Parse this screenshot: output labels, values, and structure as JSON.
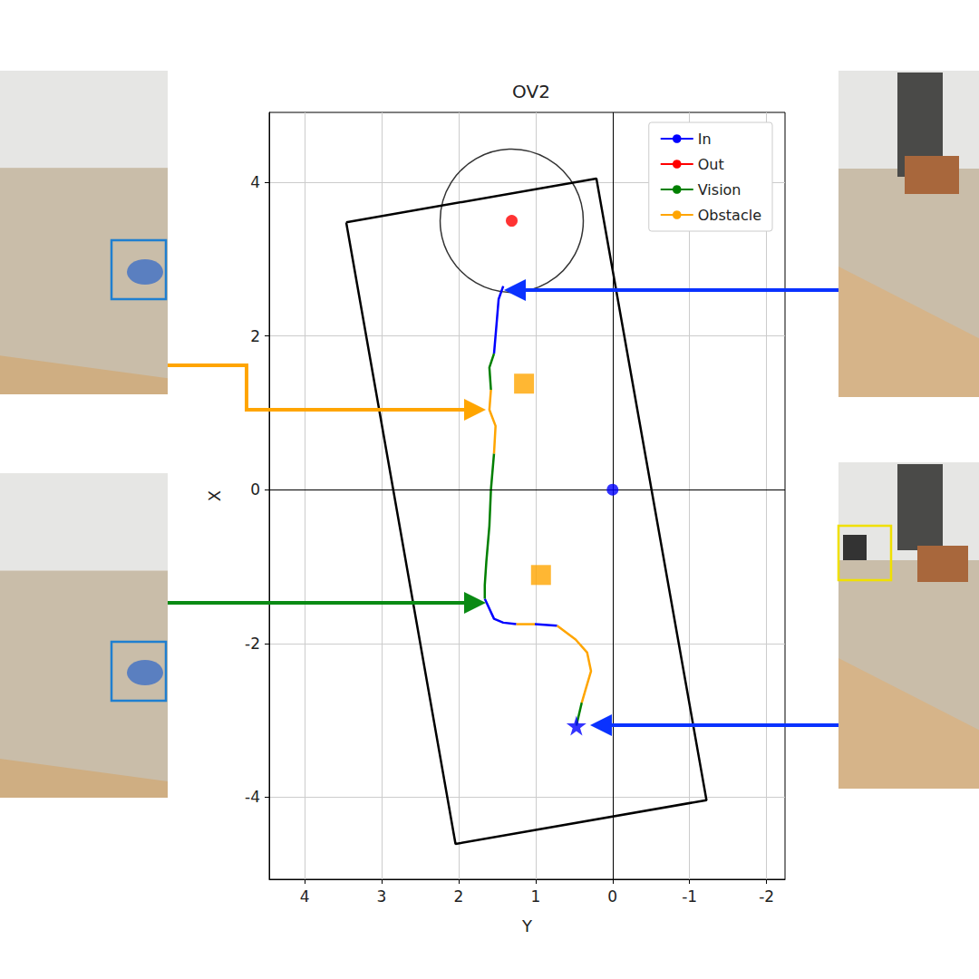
{
  "chart_data": {
    "type": "line",
    "title": "OV2",
    "x_label": "Y",
    "y_label": "X",
    "xlim": [
      4.46,
      -2.24
    ],
    "xticks": [
      4,
      3,
      2,
      1,
      0,
      -1,
      -2
    ],
    "ylim": [
      -5.07,
      4.91
    ],
    "yticks": [
      -4,
      -2,
      0,
      2,
      4
    ],
    "grid": true,
    "legend": "upper right",
    "series": [
      {
        "name": "In",
        "color": "#0000ff",
        "segments": [
          [
            [
              0.72,
              -1.77
            ],
            [
              1.01,
              -1.75
            ]
          ],
          [
            [
              1.25,
              -1.75
            ],
            [
              1.42,
              -1.73
            ],
            [
              1.54,
              -1.68
            ],
            [
              1.66,
              -1.42
            ]
          ],
          [
            [
              1.54,
              1.77
            ],
            [
              1.51,
              2.12
            ],
            [
              1.48,
              2.48
            ],
            [
              1.42,
              2.65
            ]
          ]
        ]
      },
      {
        "name": "Out",
        "color": "#ff0000",
        "segments": []
      },
      {
        "name": "Vision",
        "color": "#008000",
        "segments": [
          [
            [
              0.47,
              -3.07
            ],
            [
              0.4,
              -2.77
            ]
          ],
          [
            [
              1.66,
              -1.42
            ],
            [
              1.66,
              -1.24
            ],
            [
              1.64,
              -0.94
            ],
            [
              1.6,
              -0.47
            ],
            [
              1.58,
              0
            ],
            [
              1.54,
              0.47
            ]
          ],
          [
            [
              1.58,
              1.3
            ],
            [
              1.6,
              1.59
            ],
            [
              1.54,
              1.77
            ]
          ]
        ]
      },
      {
        "name": "Obstacle",
        "color": "#ffa500",
        "segments": [
          [
            [
              0.4,
              -2.77
            ],
            [
              0.28,
              -2.36
            ],
            [
              0.33,
              -2.12
            ],
            [
              0.48,
              -1.95
            ],
            [
              0.72,
              -1.77
            ]
          ],
          [
            [
              1.01,
              -1.75
            ],
            [
              1.25,
              -1.75
            ]
          ],
          [
            [
              1.54,
              0.47
            ],
            [
              1.52,
              0.83
            ],
            [
              1.6,
              1.04
            ],
            [
              1.58,
              1.3
            ]
          ]
        ]
      }
    ],
    "boundary": {
      "color": "#000000",
      "points": [
        [
          3.46,
          3.48
        ],
        [
          0.21,
          4.05
        ],
        [
          -1.22,
          -4.04
        ],
        [
          2.04,
          -4.61
        ]
      ]
    },
    "goal": {
      "center": [
        1.31,
        3.5
      ],
      "radius": 0.93,
      "color": "#ff0000",
      "marker": "circle"
    },
    "points": [
      {
        "value": [
          0,
          0
        ],
        "color": "#0000ff",
        "marker": "circle"
      },
      {
        "value": [
          0.47,
          -3.07
        ],
        "color": "#0000ff",
        "marker": "star"
      },
      {
        "value": [
          1.15,
          1.38
        ],
        "color": "#ffa500",
        "marker": "square"
      },
      {
        "value": [
          0.93,
          -1.11
        ],
        "color": "#ffa500",
        "marker": "square"
      }
    ]
  }
}
